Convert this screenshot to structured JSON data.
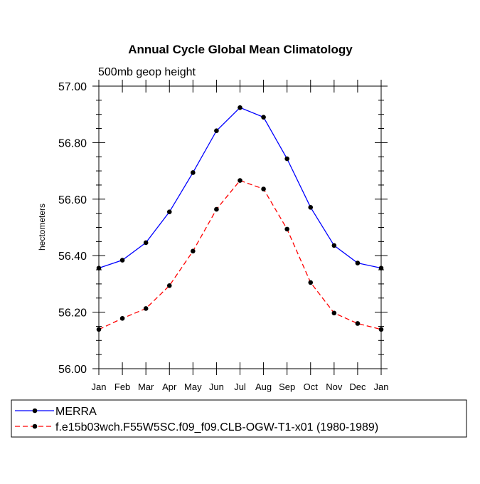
{
  "chart_data": {
    "type": "line",
    "title": "Annual Cycle Global Mean Climatology",
    "subtitle": "500mb geop height",
    "xlabel": "",
    "ylabel": "hectometers",
    "categories": [
      "Jan",
      "Feb",
      "Mar",
      "Apr",
      "May",
      "Jun",
      "Jul",
      "Aug",
      "Sep",
      "Oct",
      "Nov",
      "Dec",
      "Jan"
    ],
    "ylim": [
      56.0,
      57.0
    ],
    "yticks": [
      56.0,
      56.2,
      56.4,
      56.6,
      56.8,
      57.0
    ],
    "ytick_labels": [
      "56.00",
      "56.20",
      "56.40",
      "56.60",
      "56.80",
      "57.00"
    ],
    "grid": false,
    "legend_position": "bottom",
    "series": [
      {
        "name": "MERRA",
        "color": "#0000ff",
        "dash": "solid",
        "marker": "filled-circle",
        "values": [
          56.356,
          56.384,
          56.446,
          56.555,
          56.694,
          56.842,
          56.924,
          56.89,
          56.743,
          56.571,
          56.436,
          56.374,
          56.356
        ]
      },
      {
        "name": "f.e15b03wch.F55W5SC.f09_f09.CLB-OGW-T1-x01 (1980-1989)",
        "color": "#ff0000",
        "dash": "dashed",
        "marker": "filled-circle",
        "values": [
          56.139,
          56.178,
          56.213,
          56.294,
          56.416,
          56.564,
          56.666,
          56.636,
          56.494,
          56.305,
          56.197,
          56.16,
          56.139
        ]
      }
    ]
  }
}
